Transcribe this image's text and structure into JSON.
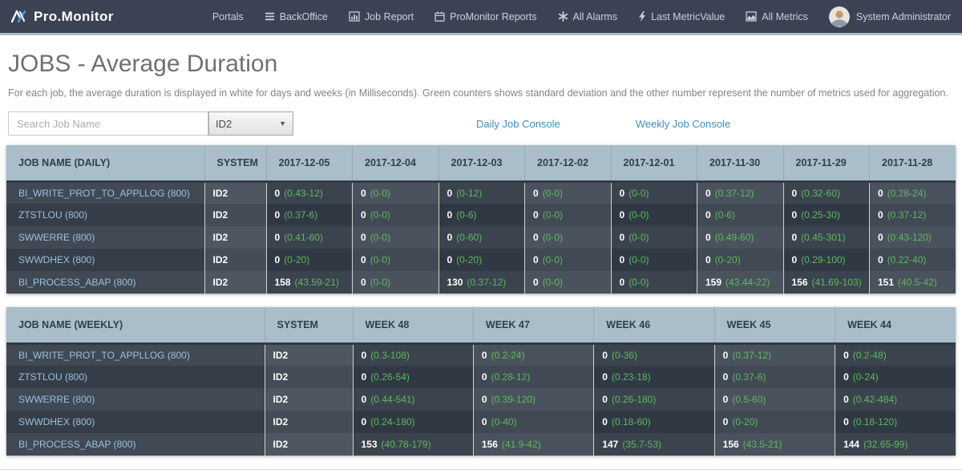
{
  "navbar": {
    "brand": "Pro.Monitor",
    "items": [
      {
        "label": "Portals",
        "icon": ""
      },
      {
        "label": "BackOffice",
        "icon": "menu-icon"
      },
      {
        "label": "Job Report",
        "icon": "bar-chart-icon"
      },
      {
        "label": "ProMonitor Reports",
        "icon": "calendar-icon"
      },
      {
        "label": "All Alarms",
        "icon": "asterisk-icon"
      },
      {
        "label": "Last MetricValue",
        "icon": "bolt-icon"
      },
      {
        "label": "All Metrics",
        "icon": "area-chart-icon"
      }
    ],
    "user": "System Administrator"
  },
  "header": {
    "title": "JOBS - Average Duration",
    "description": "For each job, the average duration is displayed in white for days and weeks (in Milliseconds). Green counters shows standard deviation and the other number represent the number of metrics used for aggregation."
  },
  "controls": {
    "search_placeholder": "Search Job Name",
    "system_filter_value": "ID2",
    "links": [
      "Daily Job Console",
      "Weekly Job Console"
    ]
  },
  "colors": {
    "navbar_bg": "#3b4254",
    "header_bg": "#a9bec9",
    "link_blue": "#3e8ec6",
    "job_blue": "#9cc0dd",
    "value_white": "#ffffff",
    "stddev_green": "#5fb760"
  },
  "daily_table": {
    "columns": [
      "JOB NAME (DAILY)",
      "SYSTEM",
      "2017-12-05",
      "2017-12-04",
      "2017-12-03",
      "2017-12-02",
      "2017-12-01",
      "2017-11-30",
      "2017-11-29",
      "2017-11-28"
    ],
    "rows": [
      {
        "job": "BI_WRITE_PROT_TO_APPLLOG (800)",
        "system": "ID2",
        "cells": [
          {
            "avg": "0",
            "sd": "(0.43-12)"
          },
          {
            "avg": "0",
            "sd": "(0-0)"
          },
          {
            "avg": "0",
            "sd": "(0-12)"
          },
          {
            "avg": "0",
            "sd": "(0-0)"
          },
          {
            "avg": "0",
            "sd": "(0-0)"
          },
          {
            "avg": "0",
            "sd": "(0.37-12)"
          },
          {
            "avg": "0",
            "sd": "(0.32-60)"
          },
          {
            "avg": "0",
            "sd": "(0.28-24)"
          }
        ]
      },
      {
        "job": "ZTSTLOU (800)",
        "system": "ID2",
        "cells": [
          {
            "avg": "0",
            "sd": "(0.37-6)"
          },
          {
            "avg": "0",
            "sd": "(0-0)"
          },
          {
            "avg": "0",
            "sd": "(0-6)"
          },
          {
            "avg": "0",
            "sd": "(0-0)"
          },
          {
            "avg": "0",
            "sd": "(0-0)"
          },
          {
            "avg": "0",
            "sd": "(0-6)"
          },
          {
            "avg": "0",
            "sd": "(0.25-30)"
          },
          {
            "avg": "0",
            "sd": "(0.37-12)"
          }
        ]
      },
      {
        "job": "SWWERRE (800)",
        "system": "ID2",
        "cells": [
          {
            "avg": "0",
            "sd": "(0.41-60)"
          },
          {
            "avg": "0",
            "sd": "(0-0)"
          },
          {
            "avg": "0",
            "sd": "(0-60)"
          },
          {
            "avg": "0",
            "sd": "(0-0)"
          },
          {
            "avg": "0",
            "sd": "(0-0)"
          },
          {
            "avg": "0",
            "sd": "(0.49-60)"
          },
          {
            "avg": "0",
            "sd": "(0.45-301)"
          },
          {
            "avg": "0",
            "sd": "(0.43-120)"
          }
        ]
      },
      {
        "job": "SWWDHEX (800)",
        "system": "ID2",
        "cells": [
          {
            "avg": "0",
            "sd": "(0-20)"
          },
          {
            "avg": "0",
            "sd": "(0-0)"
          },
          {
            "avg": "0",
            "sd": "(0-20)"
          },
          {
            "avg": "0",
            "sd": "(0-0)"
          },
          {
            "avg": "0",
            "sd": "(0-0)"
          },
          {
            "avg": "0",
            "sd": "(0-20)"
          },
          {
            "avg": "0",
            "sd": "(0.29-100)"
          },
          {
            "avg": "0",
            "sd": "(0.22-40)"
          }
        ]
      },
      {
        "job": "BI_PROCESS_ABAP (800)",
        "system": "ID2",
        "cells": [
          {
            "avg": "158",
            "sd": "(43.59-21)"
          },
          {
            "avg": "0",
            "sd": "(0-0)"
          },
          {
            "avg": "130",
            "sd": "(0.37-12)"
          },
          {
            "avg": "0",
            "sd": "(0-0)"
          },
          {
            "avg": "0",
            "sd": "(0-0)"
          },
          {
            "avg": "159",
            "sd": "(43.44-22)"
          },
          {
            "avg": "156",
            "sd": "(41.69-103)"
          },
          {
            "avg": "151",
            "sd": "(40.5-42)"
          }
        ]
      }
    ]
  },
  "weekly_table": {
    "columns": [
      "JOB NAME (WEEKLY)",
      "SYSTEM",
      "WEEK 48",
      "WEEK 47",
      "WEEK 46",
      "WEEK 45",
      "WEEK 44"
    ],
    "rows": [
      {
        "job": "BI_WRITE_PROT_TO_APPLLOG (800)",
        "system": "ID2",
        "cells": [
          {
            "avg": "0",
            "sd": "(0.3-108)"
          },
          {
            "avg": "0",
            "sd": "(0.2-24)"
          },
          {
            "avg": "0",
            "sd": "(0-36)"
          },
          {
            "avg": "0",
            "sd": "(0.37-12)"
          },
          {
            "avg": "0",
            "sd": "(0.2-48)"
          }
        ]
      },
      {
        "job": "ZTSTLOU (800)",
        "system": "ID2",
        "cells": [
          {
            "avg": "0",
            "sd": "(0.26-54)"
          },
          {
            "avg": "0",
            "sd": "(0.28-12)"
          },
          {
            "avg": "0",
            "sd": "(0.23-18)"
          },
          {
            "avg": "0",
            "sd": "(0.37-6)"
          },
          {
            "avg": "0",
            "sd": "(0-24)"
          }
        ]
      },
      {
        "job": "SWWERRE (800)",
        "system": "ID2",
        "cells": [
          {
            "avg": "0",
            "sd": "(0.44-541)"
          },
          {
            "avg": "0",
            "sd": "(0.39-120)"
          },
          {
            "avg": "0",
            "sd": "(0.26-180)"
          },
          {
            "avg": "0",
            "sd": "(0.5-60)"
          },
          {
            "avg": "0",
            "sd": "(0.42-484)"
          }
        ]
      },
      {
        "job": "SWWDHEX (800)",
        "system": "ID2",
        "cells": [
          {
            "avg": "0",
            "sd": "(0.24-180)"
          },
          {
            "avg": "0",
            "sd": "(0-40)"
          },
          {
            "avg": "0",
            "sd": "(0.18-60)"
          },
          {
            "avg": "0",
            "sd": "(0-20)"
          },
          {
            "avg": "0",
            "sd": "(0.18-120)"
          }
        ]
      },
      {
        "job": "BI_PROCESS_ABAP (800)",
        "system": "ID2",
        "cells": [
          {
            "avg": "153",
            "sd": "(40.78-179)"
          },
          {
            "avg": "156",
            "sd": "(41.9-42)"
          },
          {
            "avg": "147",
            "sd": "(35.7-53)"
          },
          {
            "avg": "156",
            "sd": "(43.5-21)"
          },
          {
            "avg": "144",
            "sd": "(32.65-99)"
          }
        ]
      }
    ]
  }
}
